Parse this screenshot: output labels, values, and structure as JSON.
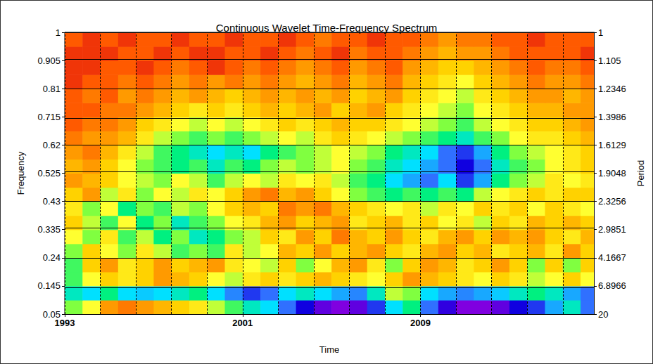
{
  "chart_data": {
    "type": "heatmap",
    "title": "Continuous Wavelet Time-Frequency Spectrum",
    "xlabel": "Time",
    "ylabel": "Frequency",
    "y2label": "Period",
    "xlim": [
      1993,
      2016.8
    ],
    "xticks": [
      1993,
      {
        "value": 1994.6,
        "label": null
      },
      {
        "value": 1996.2,
        "label": null
      },
      {
        "value": 1997.8,
        "label": null
      },
      {
        "value": 1999.4,
        "label": null
      },
      2001,
      {
        "value": 2002.6,
        "label": null
      },
      {
        "value": 2004.2,
        "label": null
      },
      {
        "value": 2005.8,
        "label": null
      },
      {
        "value": 2007.4,
        "label": null
      },
      2009,
      {
        "value": 2010.6,
        "label": null
      },
      {
        "value": 2012.2,
        "label": null
      },
      {
        "value": 2013.8,
        "label": null
      },
      {
        "value": 2015.4,
        "label": null
      }
    ],
    "ylim": [
      0.05,
      1
    ],
    "yticks": [
      0.05,
      0.145,
      0.24,
      0.335,
      0.43,
      0.525,
      0.62,
      0.715,
      0.81,
      0.905,
      1
    ],
    "y2lim": [
      20,
      1
    ],
    "y2ticks": [
      20,
      6.8966,
      4.1667,
      2.9851,
      2.3256,
      1.9048,
      1.6129,
      1.3986,
      1.2346,
      1.105,
      1
    ],
    "grid": true,
    "x_bins": [
      1993,
      1993.8,
      1994.6,
      1995.4,
      1996.2,
      1997,
      1997.8,
      1998.6,
      1999.4,
      2000.2,
      2001,
      2001.8,
      2002.6,
      2003.4,
      2004.2,
      2005,
      2005.8,
      2006.6,
      2007.4,
      2008.2,
      2009,
      2009.8,
      2010.6,
      2011.4,
      2012.2,
      2013,
      2013.8,
      2014.6,
      2015.4,
      2016.2,
      2016.8
    ],
    "y_bins": [
      0.05,
      0.0975,
      0.145,
      0.1925,
      0.24,
      0.2875,
      0.335,
      0.3825,
      0.43,
      0.4775,
      0.525,
      0.5725,
      0.62,
      0.6675,
      0.715,
      0.7625,
      0.81,
      0.8575,
      0.905,
      0.9525,
      1
    ],
    "zlim": [
      0,
      1
    ],
    "colors": [
      "#e01010",
      "#ff5a00",
      "#ff9a00",
      "#ffd200",
      "#ffff30",
      "#80ff40",
      "#00f080",
      "#00e0ff",
      "#3070ff",
      "#1000e0",
      "#b000e0"
    ],
    "cells": [
      [
        0.5,
        0.4,
        0.2,
        0.15,
        0.2,
        0.25,
        0.3,
        0.35,
        0.45,
        0.55,
        0.65,
        0.7,
        0.8,
        0.9,
        0.95,
        0.97,
        0.95,
        0.85,
        0.7,
        0.6,
        0.8,
        0.92,
        0.97,
        0.97,
        0.95,
        0.9,
        0.85,
        0.75,
        0.65,
        0.8
      ],
      [
        0.65,
        0.7,
        0.6,
        0.7,
        0.72,
        0.7,
        0.65,
        0.6,
        0.7,
        0.78,
        0.85,
        0.8,
        0.7,
        0.65,
        0.7,
        0.75,
        0.78,
        0.65,
        0.45,
        0.5,
        0.7,
        0.75,
        0.78,
        0.75,
        0.72,
        0.65,
        0.6,
        0.65,
        0.75,
        0.8
      ],
      [
        0.55,
        0.4,
        0.3,
        0.35,
        0.3,
        0.2,
        0.25,
        0.3,
        0.4,
        0.45,
        0.35,
        0.3,
        0.35,
        0.3,
        0.25,
        0.3,
        0.35,
        0.4,
        0.3,
        0.2,
        0.25,
        0.3,
        0.35,
        0.4,
        0.3,
        0.35,
        0.45,
        0.4,
        0.3,
        0.4
      ],
      [
        0.55,
        0.3,
        0.2,
        0.35,
        0.3,
        0.2,
        0.3,
        0.25,
        0.2,
        0.35,
        0.4,
        0.45,
        0.3,
        0.5,
        0.4,
        0.25,
        0.2,
        0.35,
        0.5,
        0.3,
        0.2,
        0.25,
        0.35,
        0.3,
        0.2,
        0.3,
        0.5,
        0.3,
        0.5,
        0.3
      ],
      [
        0.5,
        0.3,
        0.4,
        0.5,
        0.35,
        0.45,
        0.55,
        0.5,
        0.55,
        0.35,
        0.45,
        0.4,
        0.25,
        0.3,
        0.2,
        0.3,
        0.25,
        0.2,
        0.3,
        0.35,
        0.25,
        0.2,
        0.3,
        0.25,
        0.35,
        0.3,
        0.25,
        0.35,
        0.2,
        0.3
      ],
      [
        0.4,
        0.5,
        0.35,
        0.55,
        0.45,
        0.6,
        0.5,
        0.65,
        0.6,
        0.5,
        0.45,
        0.3,
        0.35,
        0.2,
        0.3,
        0.15,
        0.25,
        0.3,
        0.2,
        0.3,
        0.35,
        0.25,
        0.2,
        0.3,
        0.2,
        0.25,
        0.2,
        0.3,
        0.35,
        0.25
      ],
      [
        0.3,
        0.45,
        0.55,
        0.4,
        0.6,
        0.5,
        0.65,
        0.55,
        0.5,
        0.4,
        0.35,
        0.25,
        0.2,
        0.3,
        0.25,
        0.2,
        0.35,
        0.3,
        0.25,
        0.35,
        0.3,
        0.4,
        0.35,
        0.45,
        0.3,
        0.35,
        0.25,
        0.3,
        0.25,
        0.3
      ],
      [
        0.35,
        0.5,
        0.4,
        0.6,
        0.5,
        0.55,
        0.45,
        0.5,
        0.4,
        0.3,
        0.25,
        0.3,
        0.15,
        0.2,
        0.15,
        0.25,
        0.3,
        0.35,
        0.4,
        0.35,
        0.45,
        0.35,
        0.4,
        0.3,
        0.35,
        0.3,
        0.4,
        0.3,
        0.35,
        0.4
      ],
      [
        0.3,
        0.2,
        0.45,
        0.35,
        0.5,
        0.4,
        0.45,
        0.35,
        0.4,
        0.3,
        0.2,
        0.15,
        0.25,
        0.2,
        0.3,
        0.4,
        0.5,
        0.55,
        0.6,
        0.55,
        0.6,
        0.55,
        0.6,
        0.45,
        0.4,
        0.35,
        0.3,
        0.35,
        0.3,
        0.3
      ],
      [
        0.2,
        0.25,
        0.3,
        0.4,
        0.45,
        0.5,
        0.4,
        0.45,
        0.55,
        0.45,
        0.4,
        0.45,
        0.35,
        0.4,
        0.35,
        0.45,
        0.55,
        0.6,
        0.7,
        0.75,
        0.8,
        0.7,
        0.85,
        0.75,
        0.6,
        0.5,
        0.45,
        0.35,
        0.4,
        0.35
      ],
      [
        0.25,
        0.2,
        0.3,
        0.4,
        0.5,
        0.55,
        0.6,
        0.55,
        0.65,
        0.55,
        0.6,
        0.5,
        0.45,
        0.5,
        0.45,
        0.4,
        0.5,
        0.55,
        0.65,
        0.7,
        0.75,
        0.8,
        0.9,
        0.8,
        0.65,
        0.55,
        0.5,
        0.4,
        0.35,
        0.3
      ],
      [
        0.2,
        0.15,
        0.25,
        0.35,
        0.45,
        0.55,
        0.6,
        0.65,
        0.7,
        0.65,
        0.7,
        0.6,
        0.55,
        0.5,
        0.45,
        0.4,
        0.45,
        0.5,
        0.6,
        0.65,
        0.7,
        0.8,
        0.85,
        0.75,
        0.6,
        0.5,
        0.45,
        0.4,
        0.35,
        0.3
      ],
      [
        0.15,
        0.2,
        0.2,
        0.25,
        0.35,
        0.45,
        0.5,
        0.55,
        0.5,
        0.55,
        0.5,
        0.45,
        0.4,
        0.45,
        0.35,
        0.3,
        0.35,
        0.4,
        0.45,
        0.5,
        0.55,
        0.6,
        0.65,
        0.55,
        0.5,
        0.4,
        0.35,
        0.35,
        0.3,
        0.25
      ],
      [
        0.1,
        0.15,
        0.15,
        0.2,
        0.3,
        0.35,
        0.4,
        0.45,
        0.4,
        0.45,
        0.4,
        0.35,
        0.3,
        0.35,
        0.3,
        0.25,
        0.3,
        0.3,
        0.35,
        0.4,
        0.45,
        0.5,
        0.55,
        0.45,
        0.4,
        0.35,
        0.3,
        0.3,
        0.25,
        0.2
      ],
      [
        0.1,
        0.1,
        0.15,
        0.15,
        0.2,
        0.25,
        0.3,
        0.35,
        0.3,
        0.35,
        0.3,
        0.25,
        0.3,
        0.25,
        0.2,
        0.3,
        0.25,
        0.2,
        0.3,
        0.35,
        0.4,
        0.45,
        0.5,
        0.4,
        0.35,
        0.3,
        0.25,
        0.25,
        0.2,
        0.2
      ],
      [
        0.1,
        0.15,
        0.1,
        0.2,
        0.15,
        0.2,
        0.25,
        0.2,
        0.25,
        0.3,
        0.25,
        0.2,
        0.25,
        0.2,
        0.25,
        0.2,
        0.3,
        0.25,
        0.2,
        0.3,
        0.35,
        0.4,
        0.45,
        0.35,
        0.3,
        0.25,
        0.2,
        0.2,
        0.25,
        0.2
      ],
      [
        0.05,
        0.1,
        0.1,
        0.15,
        0.1,
        0.15,
        0.2,
        0.15,
        0.2,
        0.15,
        0.2,
        0.15,
        0.2,
        0.25,
        0.2,
        0.15,
        0.25,
        0.2,
        0.15,
        0.25,
        0.3,
        0.35,
        0.4,
        0.3,
        0.25,
        0.2,
        0.15,
        0.2,
        0.2,
        0.15
      ],
      [
        0.05,
        0.05,
        0.1,
        0.1,
        0.05,
        0.1,
        0.15,
        0.1,
        0.05,
        0.1,
        0.15,
        0.1,
        0.15,
        0.2,
        0.15,
        0.1,
        0.2,
        0.15,
        0.1,
        0.2,
        0.25,
        0.3,
        0.3,
        0.25,
        0.2,
        0.15,
        0.1,
        0.15,
        0.15,
        0.1
      ],
      [
        0.05,
        0.05,
        0.05,
        0.1,
        0.1,
        0.05,
        0.1,
        0.05,
        0.05,
        0.1,
        0.1,
        0.05,
        0.1,
        0.15,
        0.1,
        0.05,
        0.15,
        0.1,
        0.1,
        0.15,
        0.2,
        0.25,
        0.2,
        0.2,
        0.15,
        0.1,
        0.1,
        0.1,
        0.1,
        0.05
      ],
      [
        0.1,
        0.05,
        0.1,
        0.05,
        0.1,
        0.1,
        0.05,
        0.1,
        0.1,
        0.05,
        0.1,
        0.1,
        0.05,
        0.1,
        0.15,
        0.1,
        0.1,
        0.05,
        0.1,
        0.1,
        0.15,
        0.2,
        0.15,
        0.15,
        0.1,
        0.1,
        0.05,
        0.1,
        0.1,
        0.1
      ]
    ]
  }
}
